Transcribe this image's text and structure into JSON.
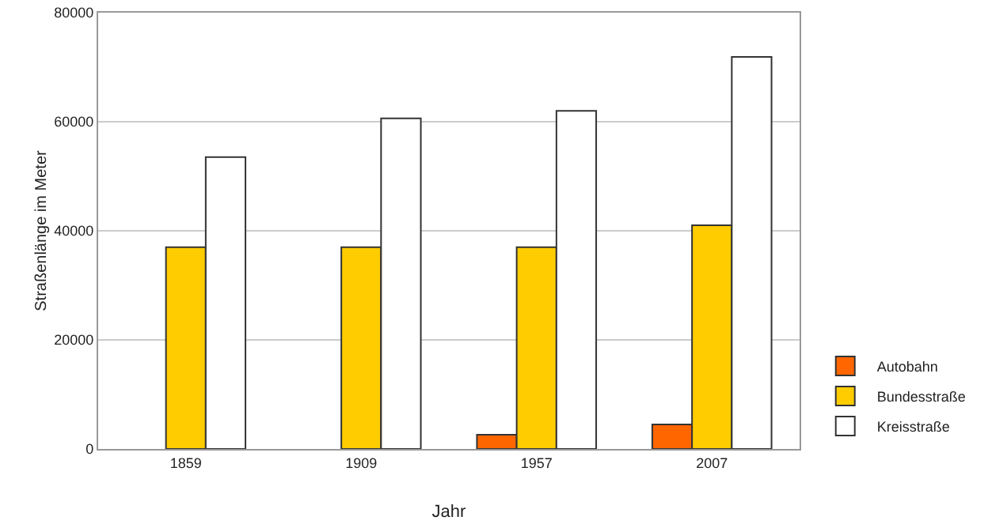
{
  "chart_data": {
    "type": "bar",
    "xlabel": "Jahr",
    "ylabel": "Straßenlänge im Meter",
    "categories": [
      "1859",
      "1909",
      "1957",
      "2007"
    ],
    "series": [
      {
        "name": "Autobahn",
        "color": "#ff6600",
        "values": [
          null,
          null,
          2600,
          4500
        ]
      },
      {
        "name": "Bundesstraße",
        "color": "#ffcc00",
        "values": [
          37000,
          37000,
          37000,
          41000
        ]
      },
      {
        "name": "Kreisstraße",
        "color": "#ffffff",
        "values": [
          53500,
          60600,
          62000,
          71900
        ]
      }
    ],
    "ylim": [
      0,
      80000
    ],
    "yticks": [
      0,
      20000,
      40000,
      60000,
      80000
    ],
    "grid": "y",
    "legend": "bottom right"
  }
}
